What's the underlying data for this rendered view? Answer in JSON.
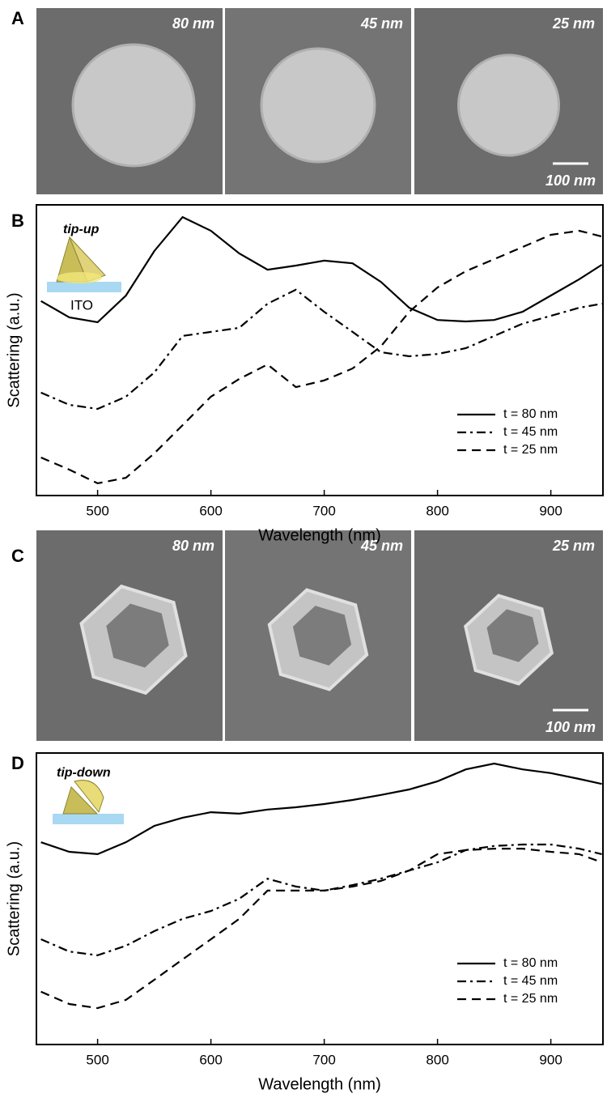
{
  "panels": [
    {
      "label": "A",
      "images": [
        "80 nm",
        "45 nm",
        "25 nm"
      ],
      "scale_bar": "100 nm"
    },
    {
      "label": "C",
      "images": [
        "80 nm",
        "45 nm",
        "25 nm"
      ],
      "scale_bar": "100 nm"
    }
  ],
  "chart_data": [
    {
      "type": "line",
      "panel_label": "B",
      "annotations": [
        "tip-up",
        "ITO"
      ],
      "xlabel": "Wavelength (nm)",
      "ylabel": "Scattering (a.u.)",
      "x": [
        450,
        475,
        500,
        525,
        550,
        575,
        600,
        625,
        650,
        675,
        700,
        725,
        750,
        775,
        800,
        825,
        850,
        875,
        900,
        925,
        945
      ],
      "xlim": [
        446,
        946
      ],
      "xticks": [
        500,
        600,
        700,
        800,
        900
      ],
      "ylim": [
        0,
        100
      ],
      "legend": "lower right",
      "series": [
        {
          "name": "t = 80 nm",
          "color": "#000000",
          "style": "solid",
          "values": [
            66.9,
            61.3,
            59.6,
            68.8,
            84.1,
            95.8,
            91.1,
            83.3,
            77.7,
            79.1,
            80.8,
            79.9,
            73.5,
            64.6,
            60.4,
            59.9,
            60.4,
            63.2,
            68.8,
            74.4,
            79.4
          ]
        },
        {
          "name": "t = 45 nm",
          "color": "#000000",
          "style": "dashdot",
          "values": [
            35.4,
            31.2,
            29.8,
            34.0,
            42.3,
            54.9,
            56.3,
            57.7,
            66.0,
            70.8,
            63.2,
            56.3,
            49.3,
            47.9,
            48.7,
            50.7,
            54.9,
            59.1,
            61.8,
            64.6,
            66.0
          ]
        },
        {
          "name": "t = 25 nm",
          "color": "#000000",
          "style": "dashed",
          "values": [
            13.1,
            8.9,
            4.2,
            6.1,
            14.5,
            24.2,
            34.0,
            40.1,
            45.1,
            37.3,
            39.6,
            43.7,
            51.3,
            63.2,
            71.6,
            77.2,
            81.3,
            85.5,
            89.7,
            91.1,
            89.1
          ]
        }
      ]
    },
    {
      "type": "line",
      "panel_label": "D",
      "annotations": [
        "tip-down"
      ],
      "xlabel": "Wavelength (nm)",
      "ylabel": "Scattering (a.u.)",
      "x": [
        450,
        475,
        500,
        525,
        550,
        575,
        600,
        625,
        650,
        675,
        700,
        725,
        750,
        775,
        800,
        825,
        850,
        875,
        900,
        925,
        945
      ],
      "xlim": [
        446,
        946
      ],
      "xticks": [
        500,
        600,
        700,
        800,
        900
      ],
      "ylim": [
        0,
        100
      ],
      "legend": "lower right",
      "series": [
        {
          "name": "t = 80 nm",
          "color": "#000000",
          "style": "solid",
          "values": [
            69.4,
            66.1,
            65.3,
            69.4,
            75.0,
            77.8,
            79.7,
            79.2,
            80.6,
            81.4,
            82.5,
            83.9,
            85.6,
            87.5,
            90.3,
            94.4,
            96.4,
            94.4,
            93.1,
            91.1,
            89.4
          ]
        },
        {
          "name": "t = 45 nm",
          "color": "#000000",
          "style": "dashdot",
          "values": [
            36.1,
            31.9,
            30.6,
            33.9,
            38.9,
            43.1,
            45.8,
            50.0,
            56.9,
            54.2,
            52.8,
            54.7,
            56.9,
            59.7,
            62.5,
            66.7,
            68.1,
            68.6,
            68.6,
            67.2,
            65.3
          ]
        },
        {
          "name": "t = 25 nm",
          "color": "#000000",
          "style": "dashed",
          "values": [
            18.1,
            13.9,
            12.5,
            15.3,
            22.2,
            29.2,
            36.1,
            43.1,
            52.8,
            52.8,
            52.8,
            54.2,
            56.1,
            59.7,
            65.3,
            66.7,
            67.2,
            67.2,
            66.1,
            65.3,
            62.5
          ]
        }
      ]
    }
  ]
}
